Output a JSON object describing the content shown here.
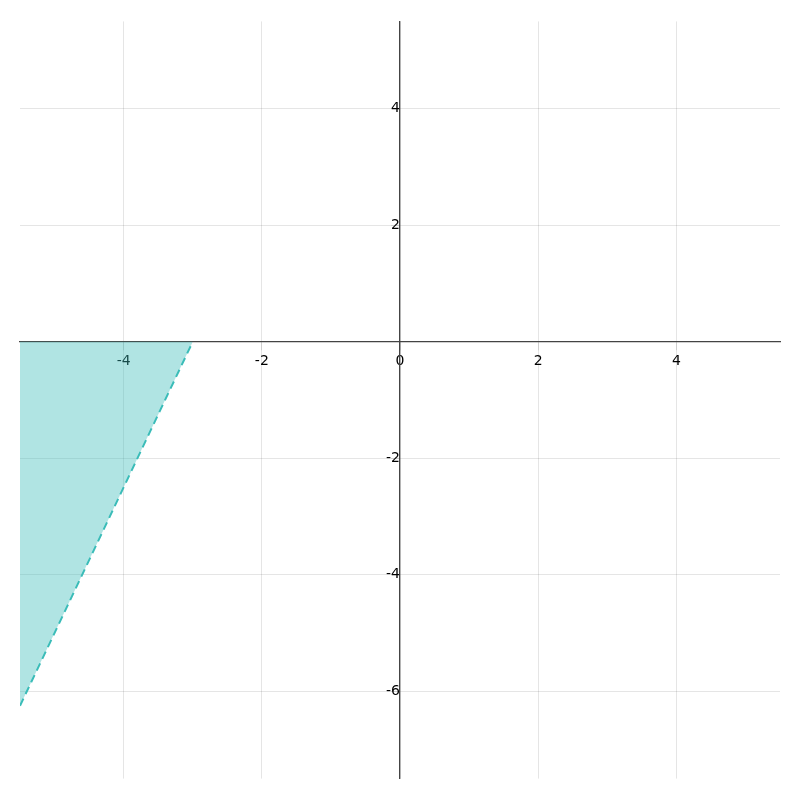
{
  "chart_data": {
    "type": "area",
    "x": [
      -5.5,
      -3
    ],
    "series": [
      {
        "color": "#3abcb8",
        "line_style": "dashed",
        "values": [
          -6.25,
          0
        ]
      }
    ],
    "xlim": [
      -5.5,
      5.5
    ],
    "xticks": [
      -4,
      -2,
      0,
      2,
      4
    ],
    "ylim": [
      -7.5,
      5.5
    ],
    "yticks": [
      -6,
      -4,
      -2,
      2,
      4
    ],
    "grid": true
  }
}
